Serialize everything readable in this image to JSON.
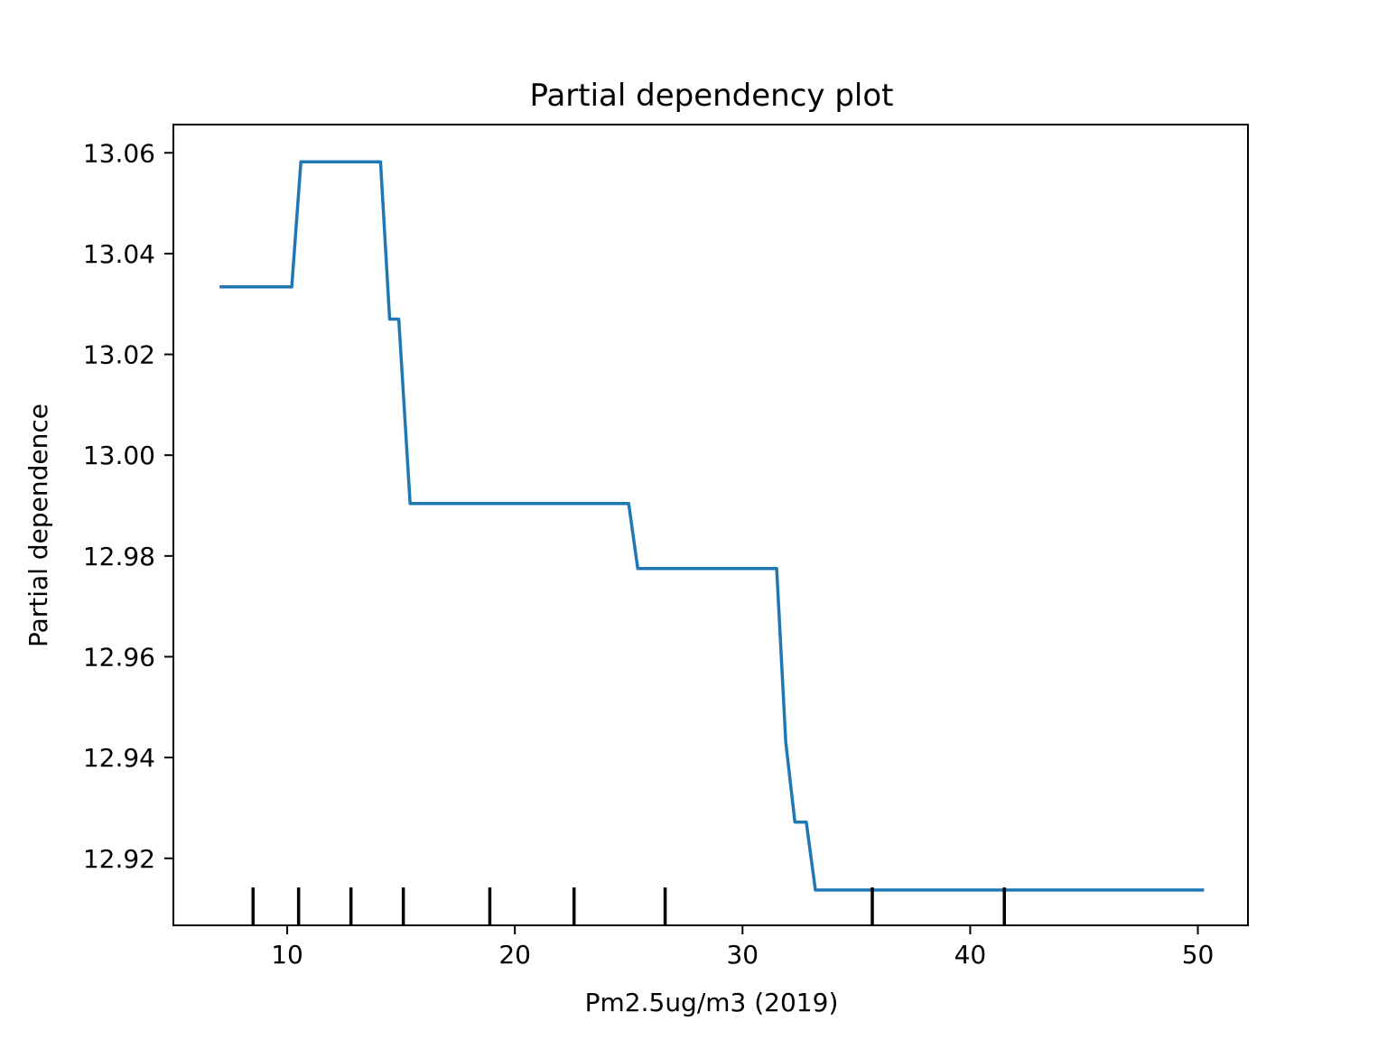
{
  "chart_data": {
    "type": "line",
    "title": "Partial dependency plot",
    "xlabel": "Pm2.5ug/m3 (2019)",
    "ylabel": "Partial dependence",
    "xlim": [
      5.0,
      52.2
    ],
    "ylim": [
      12.9067,
      13.0656
    ],
    "xticks": [
      10,
      20,
      30,
      40,
      50
    ],
    "xtick_labels": [
      "10",
      "20",
      "30",
      "40",
      "50"
    ],
    "yticks": [
      12.92,
      12.94,
      12.96,
      12.98,
      13.0,
      13.02,
      13.04,
      13.06
    ],
    "ytick_labels": [
      "12.92",
      "12.94",
      "12.96",
      "12.98",
      "13.00",
      "13.02",
      "13.04",
      "13.06"
    ],
    "grid": false,
    "line_color": "#1f77b4",
    "rug_color": "#000000",
    "series": [
      {
        "x": [
          7.1,
          10.2,
          10.6,
          14.1,
          14.5,
          14.9,
          15.4,
          25.0,
          25.4,
          31.5,
          31.9,
          32.3,
          32.8,
          33.2,
          50.2
        ],
        "y": [
          13.0334,
          13.0334,
          13.0582,
          13.0582,
          13.027,
          13.027,
          12.9904,
          12.9904,
          12.9775,
          12.9775,
          12.943,
          12.9272,
          12.9272,
          12.9137,
          12.9137
        ]
      }
    ],
    "rug_x": [
      8.5,
      10.5,
      12.8,
      15.1,
      18.9,
      22.6,
      26.6,
      35.7,
      41.5
    ]
  }
}
